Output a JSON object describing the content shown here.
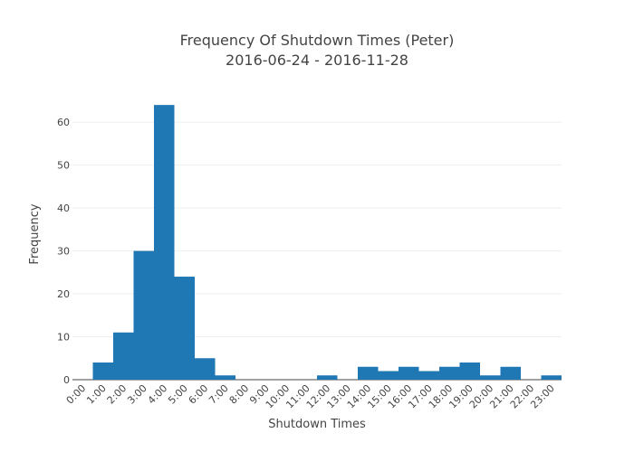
{
  "chart_data": {
    "type": "bar",
    "title_line1": "Frequency Of Shutdown Times (Peter)",
    "title_line2": "2016-06-24 - 2016-11-28",
    "xlabel": "Shutdown Times",
    "ylabel": "Frequency",
    "categories": [
      "0:00",
      "1:00",
      "2:00",
      "3:00",
      "4:00",
      "5:00",
      "6:00",
      "7:00",
      "8:00",
      "9:00",
      "10:00",
      "11:00",
      "12:00",
      "13:00",
      "14:00",
      "15:00",
      "16:00",
      "17:00",
      "18:00",
      "19:00",
      "20:00",
      "21:00",
      "22:00",
      "23:00"
    ],
    "values": [
      0,
      4,
      11,
      30,
      64,
      24,
      5,
      1,
      0,
      0,
      0,
      0,
      1,
      0,
      3,
      2,
      3,
      2,
      3,
      4,
      1,
      3,
      0,
      1
    ],
    "yticks": [
      0,
      10,
      20,
      30,
      40,
      50,
      60
    ],
    "ylim": [
      0,
      67.4
    ],
    "grid": true,
    "bar_color": "#1f77b4"
  }
}
